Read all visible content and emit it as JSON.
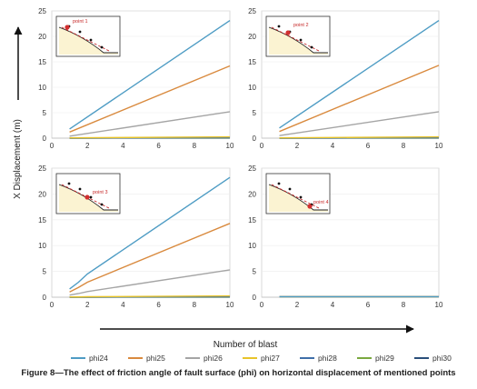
{
  "y_axis_label": "X Displacement (m)",
  "x_axis_label": "Number of blast",
  "caption": "Figure 8—The effect of friction angle of fault surface (phi) on horizontal displacement of mentioned points",
  "legend": [
    {
      "name": "phi24",
      "color": "#4e9cc4"
    },
    {
      "name": "phi25",
      "color": "#d98a3e"
    },
    {
      "name": "phi26",
      "color": "#a5a5a5"
    },
    {
      "name": "phi27",
      "color": "#e8c42a"
    },
    {
      "name": "phi28",
      "color": "#3f6fa8"
    },
    {
      "name": "phi29",
      "color": "#7aa83f"
    },
    {
      "name": "phi30",
      "color": "#2a4f7a"
    }
  ],
  "chart_data": [
    {
      "type": "line",
      "inset_label": "point 1",
      "x": [
        1,
        10
      ],
      "xlim": [
        0,
        10
      ],
      "ylim": [
        0,
        25
      ],
      "xticks": [
        0,
        2,
        4,
        6,
        8,
        10
      ],
      "yticks": [
        0,
        5,
        10,
        15,
        20,
        25
      ],
      "series": [
        {
          "name": "phi24",
          "values": [
            1.8,
            23.1
          ]
        },
        {
          "name": "phi25",
          "values": [
            1.2,
            14.2
          ]
        },
        {
          "name": "phi26",
          "values": [
            0.4,
            5.2
          ]
        },
        {
          "name": "phi27",
          "values": [
            0.05,
            0.25
          ]
        },
        {
          "name": "phi28",
          "values": [
            0.02,
            0.1
          ]
        },
        {
          "name": "phi29",
          "values": [
            0.01,
            0.05
          ]
        },
        {
          "name": "phi30",
          "values": [
            0.0,
            0.02
          ]
        }
      ]
    },
    {
      "type": "line",
      "inset_label": "point 2",
      "x": [
        1,
        10
      ],
      "xlim": [
        0,
        10
      ],
      "ylim": [
        0,
        25
      ],
      "xticks": [
        0,
        2,
        4,
        6,
        8,
        10
      ],
      "yticks": [
        0,
        5,
        10,
        15,
        20,
        25
      ],
      "series": [
        {
          "name": "phi24",
          "values": [
            2.0,
            23.1
          ]
        },
        {
          "name": "phi25",
          "values": [
            1.3,
            14.3
          ]
        },
        {
          "name": "phi26",
          "values": [
            0.5,
            5.2
          ]
        },
        {
          "name": "phi27",
          "values": [
            0.05,
            0.25
          ]
        },
        {
          "name": "phi28",
          "values": [
            0.02,
            0.1
          ]
        },
        {
          "name": "phi29",
          "values": [
            0.01,
            0.05
          ]
        },
        {
          "name": "phi30",
          "values": [
            0.0,
            0.02
          ]
        }
      ]
    },
    {
      "type": "line",
      "inset_label": "point 3",
      "x": [
        1,
        1.5,
        2,
        10
      ],
      "xlim": [
        0,
        10
      ],
      "ylim": [
        0,
        25
      ],
      "xticks": [
        0,
        2,
        4,
        6,
        8,
        10
      ],
      "yticks": [
        0,
        5,
        10,
        15,
        20,
        25
      ],
      "series": [
        {
          "name": "phi24",
          "values": [
            1.6,
            2.9,
            4.5,
            23.2
          ]
        },
        {
          "name": "phi25",
          "values": [
            1.0,
            1.9,
            2.9,
            14.3
          ]
        },
        {
          "name": "phi26",
          "values": [
            0.4,
            0.7,
            1.1,
            5.3
          ]
        },
        {
          "name": "phi27",
          "values": [
            0.05,
            0.06,
            0.08,
            0.25
          ]
        },
        {
          "name": "phi28",
          "values": [
            0.02,
            0.03,
            0.03,
            0.1
          ]
        },
        {
          "name": "phi29",
          "values": [
            0.01,
            0.01,
            0.02,
            0.05
          ]
        },
        {
          "name": "phi30",
          "values": [
            0.0,
            0.0,
            0.0,
            0.02
          ]
        }
      ]
    },
    {
      "type": "line",
      "inset_label": "point 4",
      "x": [
        1,
        10
      ],
      "xlim": [
        0,
        10
      ],
      "ylim": [
        0,
        25
      ],
      "xticks": [
        0,
        2,
        4,
        6,
        8,
        10
      ],
      "yticks": [
        0,
        5,
        10,
        15,
        20,
        25
      ],
      "series": [
        {
          "name": "phi24",
          "values": [
            0.1,
            0.1
          ]
        },
        {
          "name": "phi25",
          "values": [
            0.1,
            0.1
          ]
        },
        {
          "name": "phi26",
          "values": [
            0.1,
            0.1
          ]
        },
        {
          "name": "phi27",
          "values": [
            0.1,
            0.1
          ]
        },
        {
          "name": "phi28",
          "values": [
            0.1,
            0.1
          ]
        },
        {
          "name": "phi29",
          "values": [
            0.1,
            0.1
          ]
        },
        {
          "name": "phi30",
          "values": [
            0.1,
            0.1
          ]
        }
      ]
    }
  ]
}
